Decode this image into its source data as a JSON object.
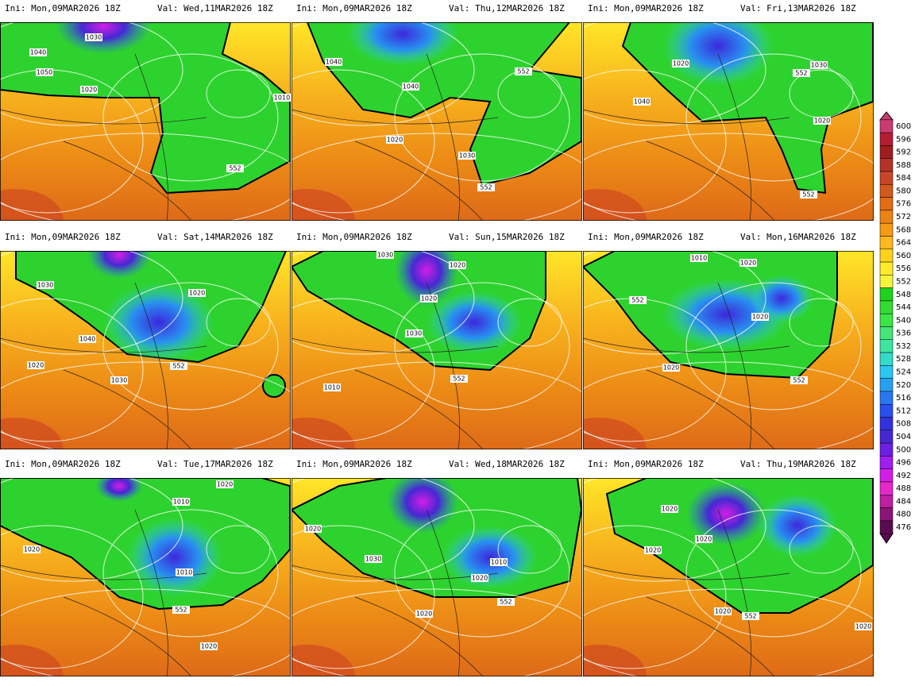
{
  "panels": [
    {
      "init": "Ini: Mon,09MAR2026 18Z",
      "valid": "Val: Wed,11MAR2026 18Z",
      "labels": [
        "1030",
        "1040",
        "1050",
        "1020",
        "552",
        "1010"
      ]
    },
    {
      "init": "Ini: Mon,09MAR2026 18Z",
      "valid": "Val: Thu,12MAR2026 18Z",
      "labels": [
        "1040",
        "1040",
        "552",
        "1020",
        "1030",
        "552"
      ]
    },
    {
      "init": "Ini: Mon,09MAR2026 18Z",
      "valid": "Val: Fri,13MAR2026 18Z",
      "labels": [
        "1020",
        "1030",
        "552",
        "1040",
        "1020",
        "552"
      ]
    },
    {
      "init": "Ini: Mon,09MAR2026 18Z",
      "valid": "Val: Sat,14MAR2026 18Z",
      "labels": [
        "1030",
        "1020",
        "1040",
        "552",
        "1030",
        "1020"
      ]
    },
    {
      "init": "Ini: Mon,09MAR2026 18Z",
      "valid": "Val: Sun,15MAR2026 18Z",
      "labels": [
        "1030",
        "1020",
        "1020",
        "1030",
        "552",
        "1010"
      ]
    },
    {
      "init": "Ini: Mon,09MAR2026 18Z",
      "valid": "Val: Mon,16MAR2026 18Z",
      "labels": [
        "1010",
        "1020",
        "552",
        "1020",
        "1020",
        "552"
      ]
    },
    {
      "init": "Ini: Mon,09MAR2026 18Z",
      "valid": "Val: Tue,17MAR2026 18Z",
      "labels": [
        "1020",
        "1010",
        "1020",
        "1010",
        "552",
        "1020"
      ]
    },
    {
      "init": "Ini: Mon,09MAR2026 18Z",
      "valid": "Val: Wed,18MAR2026 18Z",
      "labels": [
        "1020",
        "1030",
        "1010",
        "1020",
        "552",
        "1020"
      ]
    },
    {
      "init": "Ini: Mon,09MAR2026 18Z",
      "valid": "Val: Thu,19MAR2026 18Z",
      "labels": [
        "1020",
        "1020",
        "1020",
        "1020",
        "552",
        "1020"
      ]
    }
  ],
  "colorbar": {
    "levels": [
      600,
      596,
      592,
      588,
      584,
      580,
      576,
      572,
      568,
      564,
      560,
      556,
      552,
      548,
      544,
      540,
      536,
      532,
      528,
      524,
      520,
      516,
      512,
      508,
      504,
      500,
      496,
      492,
      488,
      484,
      480,
      476
    ],
    "colors": [
      "#c83c6e",
      "#b41e32",
      "#a01e1e",
      "#b43228",
      "#c84628",
      "#d25a1e",
      "#e16e14",
      "#eb8214",
      "#f59b14",
      "#ffb91e",
      "#ffd21e",
      "#ffeb28",
      "#f5f53c",
      "#1ed21e",
      "#32dc32",
      "#3ce646",
      "#46e678",
      "#3ce6a0",
      "#32dcc8",
      "#28c8f0",
      "#28a0f0",
      "#2878f0",
      "#2850f0",
      "#3232dc",
      "#4628d2",
      "#6e1ee6",
      "#a01ef0",
      "#d21ee6",
      "#e628c8",
      "#be1ea0",
      "#8c1478",
      "#5a0a50"
    ]
  }
}
